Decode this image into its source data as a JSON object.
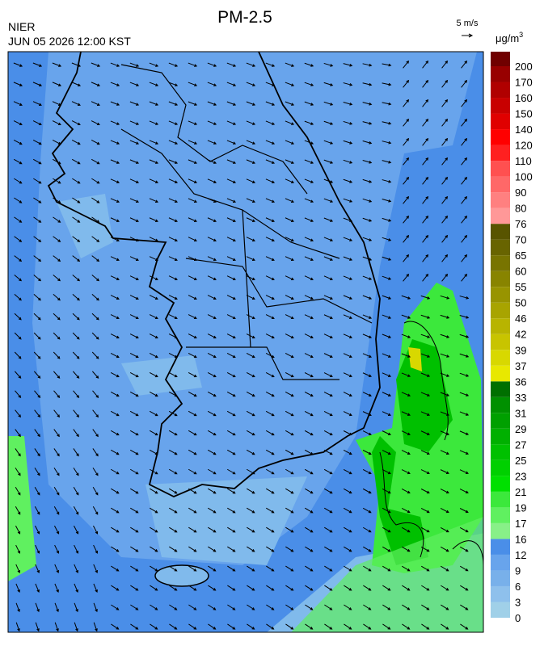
{
  "header": {
    "title": "PM-2.5",
    "source": "NIER",
    "time": "JUN 05 2026 12:00 KST",
    "vector_scale": "5 m/s",
    "unit": "μg/m",
    "unit_sup": "3"
  },
  "colorbar": {
    "ticks": [
      0,
      3,
      6,
      9,
      12,
      16,
      17,
      19,
      21,
      23,
      25,
      27,
      29,
      31,
      33,
      36,
      37,
      39,
      42,
      46,
      50,
      55,
      60,
      65,
      70,
      76,
      80,
      90,
      100,
      110,
      120,
      140,
      150,
      160,
      170,
      200
    ],
    "colors": [
      "#a0d0e8",
      "#8ec0ec",
      "#78b0ea",
      "#68a4ec",
      "#4a8ee8",
      "#88f088",
      "#60f060",
      "#3ce83c",
      "#00e000",
      "#00d000",
      "#00c000",
      "#00b000",
      "#00a000",
      "#009000",
      "#007000",
      "#e8e800",
      "#d8d800",
      "#c8c400",
      "#b8b400",
      "#a8a400",
      "#989400",
      "#888400",
      "#787400",
      "#686400",
      "#585400",
      "#ff9898",
      "#ff8080",
      "#ff6868",
      "#ff5050",
      "#ff2020",
      "#ff0000",
      "#e00000",
      "#c80000",
      "#b00000",
      "#980000",
      "#700000"
    ]
  }
}
